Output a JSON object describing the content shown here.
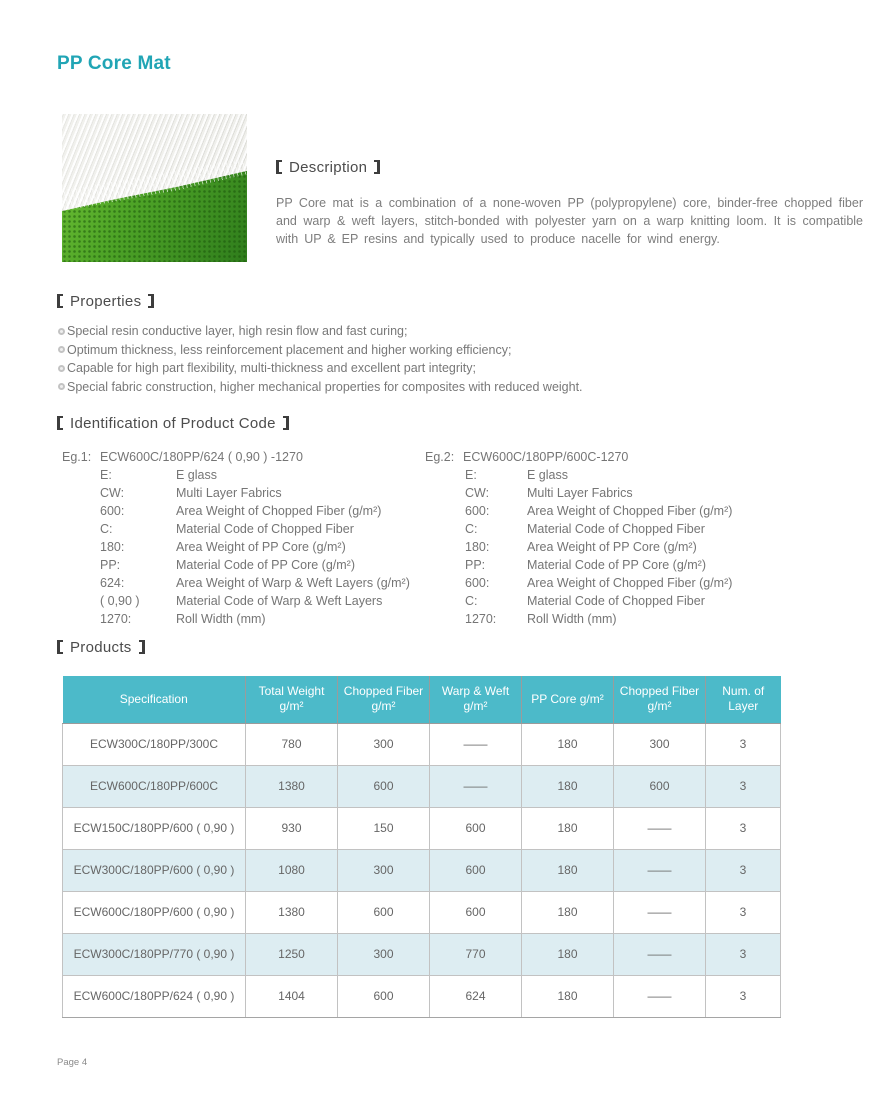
{
  "page": {
    "title": "PP Core Mat",
    "footer": "Page 4"
  },
  "colors": {
    "title_accent": "#21a5b5",
    "table_header_bg": "#4cbac9",
    "table_alt_row_bg": "#ddedf2",
    "photo_green": "#4ea427"
  },
  "photo": {
    "name": "pp-core-mat-photo"
  },
  "description": {
    "heading": "Description",
    "body": "PP Core mat is a combination of a none-woven PP (polypropylene) core, binder-free chopped fiber and warp & weft layers, stitch-bonded with polyester yarn on a warp knitting loom. It is compatible with UP & EP resins and typically used to produce nacelle for wind energy."
  },
  "properties": {
    "heading": "Properties",
    "items": [
      "Special resin conductive layer, high resin flow and fast curing;",
      "Optimum thickness, less reinforcement placement and higher working efficiency;",
      "Capable for high part flexibility, multi-thickness and excellent part integrity;",
      "Special fabric construction, higher mechanical properties for composites with reduced weight."
    ]
  },
  "identification": {
    "heading": "Identification of Product Code",
    "examples": [
      {
        "label": "Eg.1:",
        "code": "ECW600C/180PP/624 ( 0,90 ) -1270",
        "entries": [
          [
            "E:",
            "E glass"
          ],
          [
            "CW:",
            "Multi Layer Fabrics"
          ],
          [
            "600:",
            "Area Weight of Chopped Fiber (g/m²)"
          ],
          [
            "C:",
            "Material Code of Chopped Fiber"
          ],
          [
            "180:",
            "Area Weight of PP Core (g/m²)"
          ],
          [
            "PP:",
            "Material Code of PP Core (g/m²)"
          ],
          [
            "624:",
            "Area Weight of Warp & Weft Layers (g/m²)"
          ],
          [
            "( 0,90 )",
            "Material Code of Warp & Weft Layers"
          ],
          [
            "1270:",
            "Roll Width (mm)"
          ]
        ]
      },
      {
        "label": "Eg.2:",
        "code": "ECW600C/180PP/600C-1270",
        "entries": [
          [
            "E:",
            "E glass"
          ],
          [
            "CW:",
            "Multi Layer Fabrics"
          ],
          [
            "600:",
            "Area Weight of Chopped Fiber (g/m²)"
          ],
          [
            "C:",
            "Material Code of Chopped Fiber"
          ],
          [
            "180:",
            "Area Weight of PP Core (g/m²)"
          ],
          [
            "PP:",
            "Material Code of PP Core (g/m²)"
          ],
          [
            "600:",
            "Area Weight of Chopped Fiber (g/m²)"
          ],
          [
            "C:",
            "Material Code of Chopped Fiber"
          ],
          [
            "1270:",
            "Roll Width (mm)"
          ]
        ]
      }
    ]
  },
  "products": {
    "heading": "Products",
    "columns": [
      "Specification",
      "Total Weight\ng/m²",
      "Chopped Fiber\ng/m²",
      "Warp & Weft\ng/m²",
      "PP Core g/m²",
      "Chopped Fiber\ng/m²",
      "Num. of Layer"
    ],
    "rows": [
      [
        "ECW300C/180PP/300C",
        "780",
        "300",
        "——",
        "180",
        "300",
        "3"
      ],
      [
        "ECW600C/180PP/600C",
        "1380",
        "600",
        "——",
        "180",
        "600",
        "3"
      ],
      [
        "ECW150C/180PP/600 ( 0,90 )",
        "930",
        "150",
        "600",
        "180",
        "——",
        "3"
      ],
      [
        "ECW300C/180PP/600 ( 0,90 )",
        "1080",
        "300",
        "600",
        "180",
        "——",
        "3"
      ],
      [
        "ECW600C/180PP/600 ( 0,90 )",
        "1380",
        "600",
        "600",
        "180",
        "——",
        "3"
      ],
      [
        "ECW300C/180PP/770 ( 0,90 )",
        "1250",
        "300",
        "770",
        "180",
        "——",
        "3"
      ],
      [
        "ECW600C/180PP/624 ( 0,90 )",
        "1404",
        "600",
        "624",
        "180",
        "——",
        "3"
      ]
    ]
  }
}
